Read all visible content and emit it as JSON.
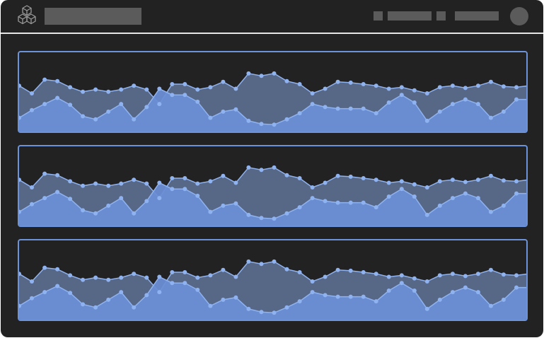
{
  "colors": {
    "background": "#222222",
    "header_divider": "#e6e6e6",
    "placeholder_block": "#5b5b5b",
    "panel_border": "#6c93d9",
    "series_back_fill": "#5b6b8c",
    "series_front_fill": "#6b8fd6",
    "series_point": "#8fb2f0"
  },
  "header": {
    "logo_icon": "cube-stack-icon",
    "avatar_icon": "avatar-circle"
  },
  "chart_data": [
    {
      "type": "area",
      "series": [
        {
          "values": [
            0.6,
            0.5,
            0.68,
            0.66,
            0.58,
            0.52,
            0.55,
            0.52,
            0.55,
            0.6,
            0.55,
            0.36,
            0.62,
            0.62,
            0.55,
            0.58,
            0.65,
            0.56,
            0.76,
            0.73,
            0.76,
            0.66,
            0.62,
            0.5,
            0.56,
            0.65,
            0.64,
            0.62,
            0.6,
            0.56,
            0.58,
            0.54,
            0.5,
            0.58,
            0.6,
            0.57,
            0.6,
            0.65,
            0.59,
            0.58,
            0.6
          ]
        },
        {
          "values": [
            0.18,
            0.28,
            0.36,
            0.44,
            0.35,
            0.2,
            0.16,
            0.26,
            0.36,
            0.16,
            0.32,
            0.56,
            0.48,
            0.48,
            0.39,
            0.18,
            0.26,
            0.29,
            0.14,
            0.1,
            0.09,
            0.16,
            0.24,
            0.36,
            0.32,
            0.3,
            0.3,
            0.3,
            0.24,
            0.38,
            0.48,
            0.38,
            0.14,
            0.26,
            0.36,
            0.42,
            0.36,
            0.18,
            0.26,
            0.42,
            0.42
          ]
        }
      ]
    },
    {
      "type": "area",
      "series": [
        {
          "values": [
            0.6,
            0.5,
            0.68,
            0.66,
            0.58,
            0.52,
            0.55,
            0.52,
            0.55,
            0.6,
            0.55,
            0.36,
            0.62,
            0.62,
            0.55,
            0.58,
            0.65,
            0.56,
            0.76,
            0.73,
            0.76,
            0.66,
            0.62,
            0.5,
            0.56,
            0.65,
            0.64,
            0.62,
            0.6,
            0.56,
            0.58,
            0.54,
            0.5,
            0.58,
            0.6,
            0.57,
            0.6,
            0.65,
            0.59,
            0.58,
            0.6
          ]
        },
        {
          "values": [
            0.18,
            0.28,
            0.36,
            0.44,
            0.35,
            0.2,
            0.16,
            0.26,
            0.36,
            0.16,
            0.32,
            0.56,
            0.48,
            0.48,
            0.39,
            0.18,
            0.26,
            0.29,
            0.14,
            0.1,
            0.09,
            0.16,
            0.24,
            0.36,
            0.32,
            0.3,
            0.3,
            0.3,
            0.24,
            0.38,
            0.48,
            0.38,
            0.14,
            0.26,
            0.36,
            0.42,
            0.36,
            0.18,
            0.26,
            0.42,
            0.42
          ]
        }
      ]
    },
    {
      "type": "area",
      "series": [
        {
          "values": [
            0.6,
            0.5,
            0.68,
            0.66,
            0.58,
            0.52,
            0.55,
            0.52,
            0.55,
            0.6,
            0.55,
            0.36,
            0.62,
            0.62,
            0.55,
            0.58,
            0.65,
            0.56,
            0.76,
            0.73,
            0.76,
            0.66,
            0.62,
            0.5,
            0.56,
            0.65,
            0.64,
            0.62,
            0.6,
            0.56,
            0.58,
            0.54,
            0.5,
            0.58,
            0.6,
            0.57,
            0.6,
            0.65,
            0.59,
            0.58,
            0.6
          ]
        },
        {
          "values": [
            0.18,
            0.28,
            0.36,
            0.44,
            0.35,
            0.2,
            0.16,
            0.26,
            0.36,
            0.16,
            0.32,
            0.56,
            0.48,
            0.48,
            0.39,
            0.18,
            0.26,
            0.29,
            0.14,
            0.1,
            0.09,
            0.16,
            0.24,
            0.36,
            0.32,
            0.3,
            0.3,
            0.3,
            0.24,
            0.38,
            0.48,
            0.38,
            0.14,
            0.26,
            0.36,
            0.42,
            0.36,
            0.18,
            0.26,
            0.42,
            0.42
          ]
        }
      ]
    }
  ]
}
